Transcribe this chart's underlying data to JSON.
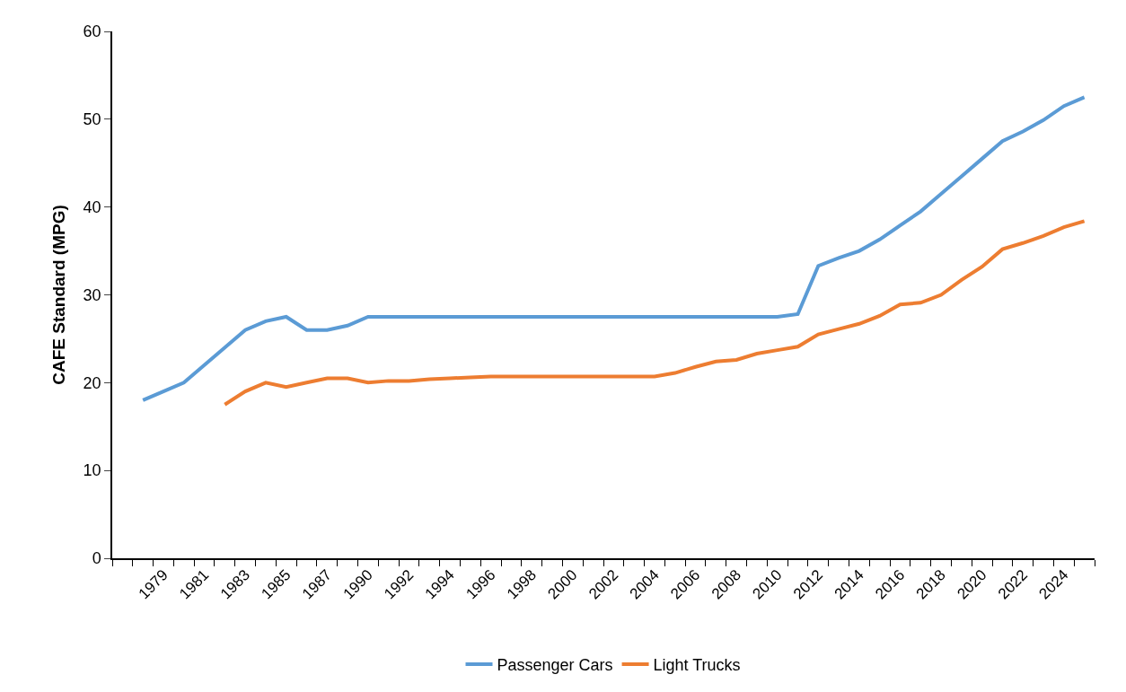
{
  "chart_data": {
    "type": "line",
    "ylabel": "CAFE Standard (MPG)",
    "categories": [
      null,
      null,
      "1979",
      null,
      "1981",
      null,
      "1983",
      null,
      "1985",
      null,
      "1987",
      null,
      "1990",
      null,
      "1992",
      null,
      "1994",
      null,
      "1996",
      null,
      "1998",
      null,
      "2000",
      null,
      "2002",
      null,
      "2004",
      null,
      "2006",
      null,
      "2008",
      null,
      "2010",
      null,
      "2012",
      null,
      "2014",
      null,
      "2016",
      null,
      "2018",
      null,
      "2020",
      null,
      "2022",
      null,
      "2024",
      null
    ],
    "series": [
      {
        "name": "Passenger Cars",
        "color": "#5b9bd5",
        "values": [
          null,
          18,
          19,
          20,
          22,
          24,
          26,
          27,
          27.5,
          26,
          26,
          26.5,
          27.5,
          27.5,
          27.5,
          27.5,
          27.5,
          27.5,
          27.5,
          27.5,
          27.5,
          27.5,
          27.5,
          27.5,
          27.5,
          27.5,
          27.5,
          27.5,
          27.5,
          27.5,
          27.5,
          27.5,
          27.5,
          27.8,
          33.3,
          34.2,
          35.0,
          36.3,
          37.9,
          39.5,
          41.5,
          43.5,
          45.5,
          47.5,
          48.6,
          49.9,
          51.5,
          52.5
        ]
      },
      {
        "name": "Light Trucks",
        "color": "#ed7d31",
        "values": [
          null,
          null,
          null,
          null,
          null,
          17.5,
          19,
          20,
          19.5,
          20,
          20.5,
          20.5,
          20,
          20.2,
          20.2,
          20.4,
          20.5,
          20.6,
          20.7,
          20.7,
          20.7,
          20.7,
          20.7,
          20.7,
          20.7,
          20.7,
          20.7,
          21.1,
          21.8,
          22.4,
          22.6,
          23.3,
          23.7,
          24.1,
          25.5,
          26.1,
          26.7,
          27.6,
          28.9,
          29.1,
          30.0,
          31.7,
          33.2,
          35.2,
          35.9,
          36.7,
          37.7,
          38.4
        ]
      }
    ],
    "ylim": [
      0,
      60
    ],
    "yticks": [
      0,
      10,
      20,
      30,
      40,
      50,
      60
    ],
    "legend": "bottom",
    "marker": "none",
    "line_style": "solid"
  }
}
